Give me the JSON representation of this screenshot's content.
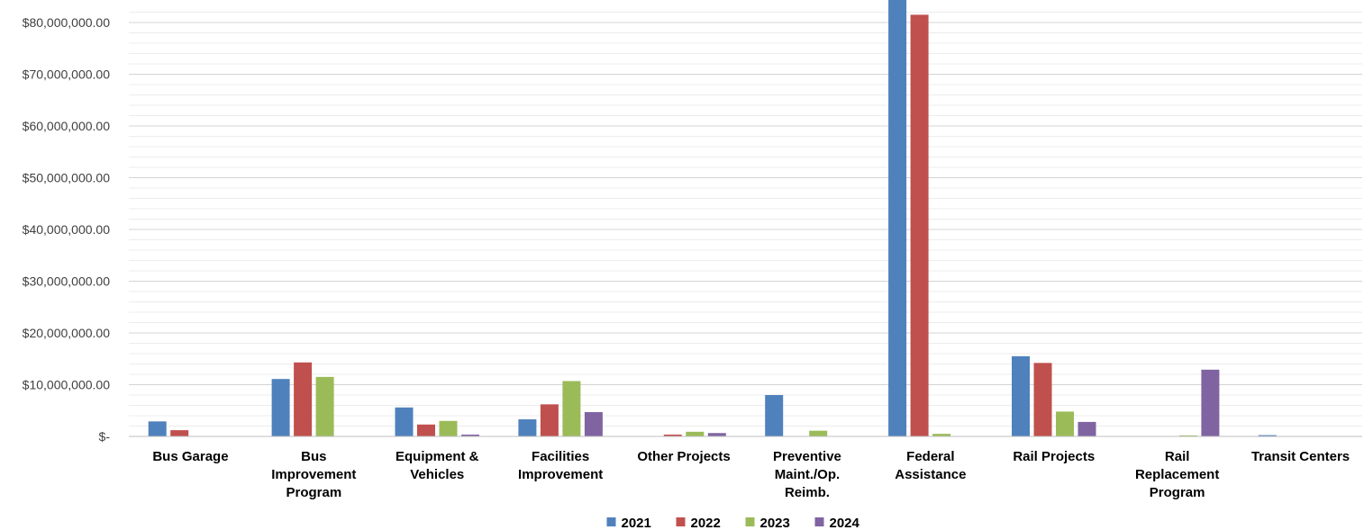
{
  "chart_data": {
    "type": "bar",
    "categories": [
      "Bus Garage",
      "Bus Improvement Program",
      "Equipment & Vehicles",
      "Facilities Improvement",
      "Other Projects",
      "Preventive Maint./Op. Reimb.",
      "Federal Assistance",
      "Rail Projects",
      "Rail Replacement Program",
      "Transit Centers"
    ],
    "category_lines": [
      [
        "Bus Garage"
      ],
      [
        "Bus",
        "Improvement",
        "Program"
      ],
      [
        "Equipment &",
        "Vehicles"
      ],
      [
        "Facilities",
        "Improvement"
      ],
      [
        "Other Projects"
      ],
      [
        "Preventive",
        "Maint./Op.",
        "Reimb."
      ],
      [
        "Federal",
        "Assistance"
      ],
      [
        "Rail Projects"
      ],
      [
        "Rail",
        "Replacement",
        "Program"
      ],
      [
        "Transit Centers"
      ]
    ],
    "series": [
      {
        "name": "2021",
        "color": "#4F81BD",
        "values": [
          2900000,
          11100000,
          5600000,
          3300000,
          0,
          8000000,
          85000000,
          15500000,
          0,
          250000
        ]
      },
      {
        "name": "2022",
        "color": "#C0504D",
        "values": [
          1200000,
          14300000,
          2300000,
          6200000,
          350000,
          0,
          81500000,
          14200000,
          0,
          0
        ]
      },
      {
        "name": "2023",
        "color": "#9BBB59",
        "values": [
          0,
          11500000,
          3000000,
          10700000,
          900000,
          1100000,
          500000,
          4800000,
          200000,
          0
        ]
      },
      {
        "name": "2024",
        "color": "#8064A2",
        "values": [
          0,
          0,
          350000,
          4700000,
          650000,
          0,
          0,
          2800000,
          12900000,
          0
        ]
      }
    ],
    "ylim": [
      0,
      84000000
    ],
    "yticks": [
      0,
      10000000,
      20000000,
      30000000,
      40000000,
      50000000,
      60000000,
      70000000,
      80000000
    ],
    "ytick_labels": [
      "$-",
      "$10,000,000.00",
      "$20,000,000.00",
      "$30,000,000.00",
      "$40,000,000.00",
      "$50,000,000.00",
      "$60,000,000.00",
      "$70,000,000.00",
      "$80,000,000.00"
    ],
    "minor_grid_step": 2000000,
    "grid": true,
    "legend_position": "bottom",
    "title": "",
    "xlabel": "",
    "ylabel": ""
  }
}
